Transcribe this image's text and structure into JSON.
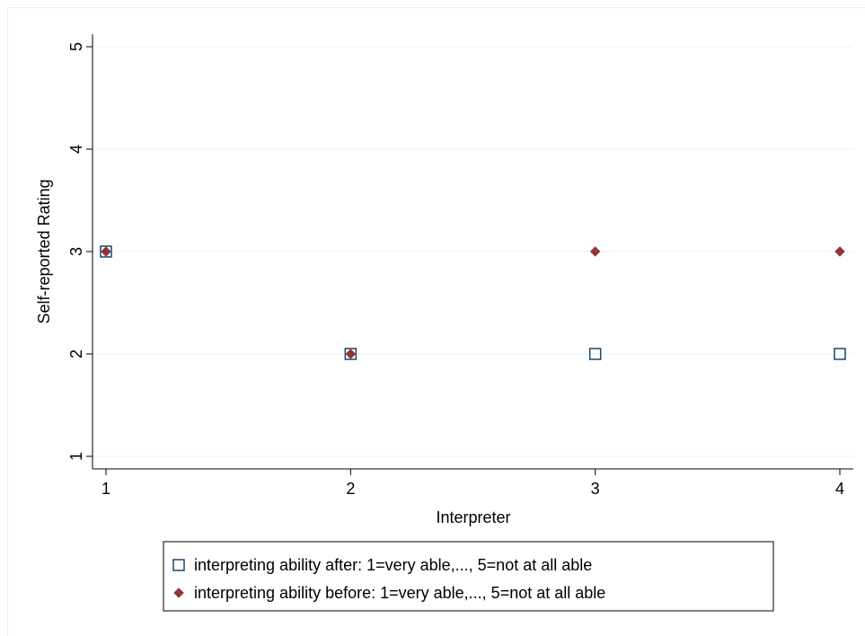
{
  "chart_data": {
    "type": "scatter",
    "title": "",
    "xlabel": "Interpreter",
    "ylabel": "Self-reported Rating",
    "xlim": [
      1,
      4
    ],
    "ylim": [
      1,
      5
    ],
    "x_ticks": [
      "1",
      "2",
      "3",
      "4"
    ],
    "y_ticks": [
      "1",
      "2",
      "3",
      "4",
      "5"
    ],
    "grid": "horizontal",
    "legend_position": "bottom",
    "series": [
      {
        "name": "interpreting ability after: 1=very able,..., 5=not at all able",
        "marker": "hollow-square",
        "color": "#1a476f",
        "points": [
          [
            1,
            3
          ],
          [
            2,
            2
          ],
          [
            3,
            2
          ],
          [
            4,
            2
          ]
        ]
      },
      {
        "name": "interpreting ability before: 1=very able,..., 5=not at all able",
        "marker": "filled-diamond",
        "color": "#90353b",
        "points": [
          [
            1,
            3
          ],
          [
            2,
            2
          ],
          [
            3,
            3
          ],
          [
            4,
            3
          ]
        ]
      }
    ]
  }
}
